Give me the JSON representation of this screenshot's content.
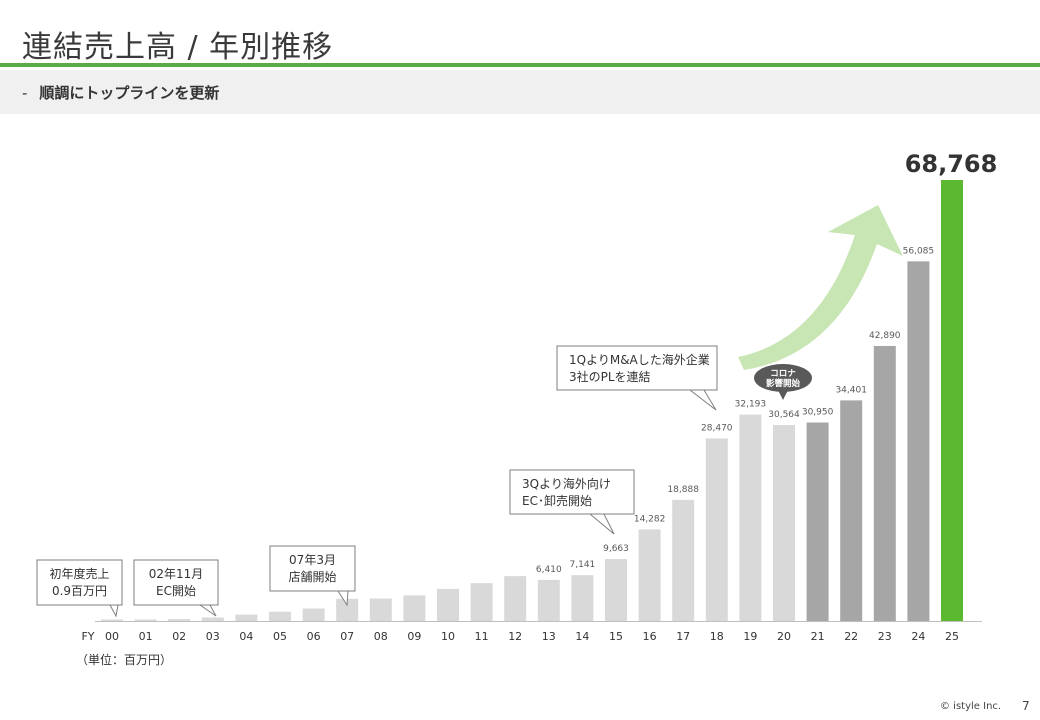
{
  "page": {
    "title": "連結売上高 / 年別推移",
    "subtitle_dash": "-",
    "subtitle": "順調にトップラインを更新",
    "unit_label": "（単位：百万円）",
    "copyright": "© istyle Inc.",
    "page_number": "7"
  },
  "colors": {
    "accent_green": "#5aaa46",
    "bar_light": "#d9d9d9",
    "bar_dark": "#a6a6a6",
    "bar_highlight": "#5cb82e",
    "arrow_green": "#c8e6b4"
  },
  "chart_data": {
    "type": "bar",
    "x_prefix": "FY",
    "categories": [
      "00",
      "01",
      "02",
      "03",
      "04",
      "05",
      "06",
      "07",
      "08",
      "09",
      "10",
      "11",
      "12",
      "13",
      "14",
      "15",
      "16",
      "17",
      "18",
      "19",
      "20",
      "21",
      "22",
      "23",
      "24",
      "25"
    ],
    "values": [
      0.9,
      150,
      300,
      550,
      1000,
      1450,
      1950,
      3450,
      3500,
      4000,
      5000,
      5900,
      7000,
      6410,
      7141,
      9663,
      14282,
      18888,
      28470,
      32193,
      30564,
      30950,
      34401,
      42890,
      56085,
      68768
    ],
    "value_labels": [
      "",
      "",
      "",
      "",
      "",
      "",
      "",
      "",
      "",
      "",
      "",
      "",
      "",
      "6,410",
      "7,141",
      "9,663",
      "14,282",
      "18,888",
      "28,470",
      "32,193",
      "30,564",
      "30,950",
      "34,401",
      "42,890",
      "56,085",
      "68,768"
    ],
    "bar_color_groups": [
      "light",
      "light",
      "light",
      "light",
      "light",
      "light",
      "light",
      "light",
      "light",
      "light",
      "light",
      "light",
      "light",
      "light",
      "light",
      "light",
      "light",
      "light",
      "light",
      "light",
      "light",
      "dark",
      "dark",
      "dark",
      "dark",
      "highlight"
    ],
    "ylim": [
      0,
      70000
    ],
    "grid": false,
    "legend": "none",
    "annotations": [
      {
        "lines": [
          "初年度売上",
          "0.9百万円"
        ],
        "target_index": 0,
        "style": "box"
      },
      {
        "lines": [
          "02年11月",
          "EC開始"
        ],
        "target_index": 3,
        "style": "box"
      },
      {
        "lines": [
          "07年3月",
          "店舗開始"
        ],
        "target_index": 7,
        "style": "box"
      },
      {
        "lines": [
          "3Qより海外向け",
          "EC･卸売開始"
        ],
        "target_index": 15,
        "style": "box"
      },
      {
        "lines": [
          "1QよりM&Aした海外企業",
          "3社のPLを連結"
        ],
        "target_index": 18,
        "style": "box"
      },
      {
        "lines": [
          "コロナ",
          "影響開始"
        ],
        "target_index": 20,
        "style": "bubble"
      }
    ]
  }
}
